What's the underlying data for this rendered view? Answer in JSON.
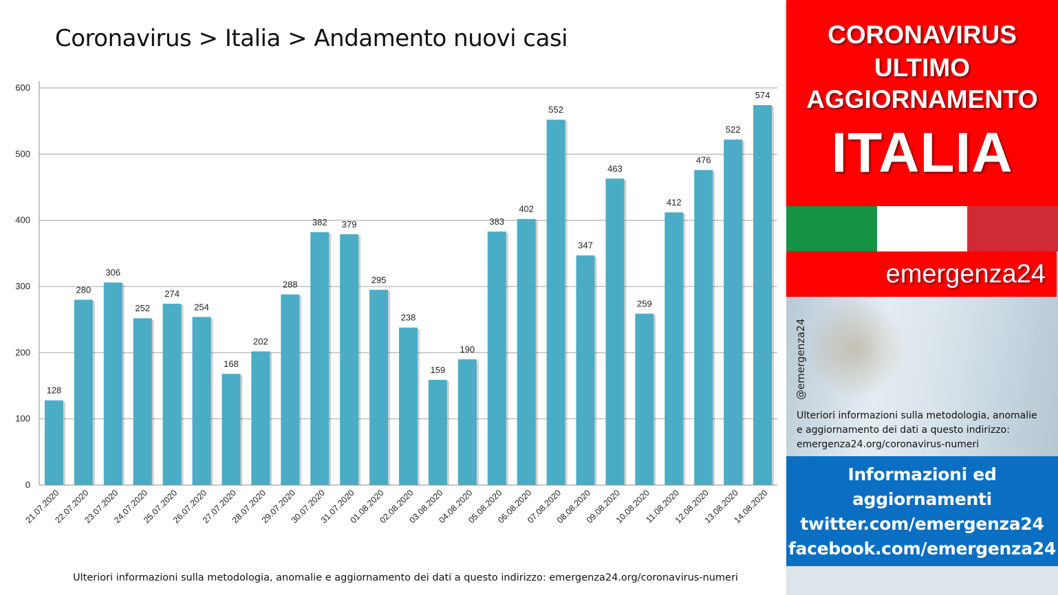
{
  "title": "Coronavirus > Italia > Andamento nuovi casi",
  "footer_note": "Ulteriori informazioni sulla metodologia, anomalie e aggiornamento dei dati a questo indirizzo: emergenza24.org/coronavirus-numeri",
  "colors": {
    "bar": "#4bacc6",
    "header_red": "#ff0000",
    "flag_green": "#139343",
    "flag_white": "#ffffff",
    "flag_red": "#cf2b37",
    "info_blue": "#0a6fc2"
  },
  "chart_data": {
    "type": "bar",
    "title": "Coronavirus > Italia > Andamento nuovi casi",
    "xlabel": "",
    "ylabel": "",
    "ylim": [
      0,
      600
    ],
    "yticks": [
      0,
      100,
      200,
      300,
      400,
      500,
      600
    ],
    "grid": true,
    "legend": "none",
    "categories": [
      "21.07.2020",
      "22.07.2020",
      "23.07.2020",
      "24.07.2020",
      "25.07.2020",
      "26.07.2020",
      "27.07.2020",
      "28.07.2020",
      "29.07.2020",
      "30.07.2020",
      "31.07.2020",
      "01.08.2020",
      "02.08.2020",
      "03.08.2020",
      "04.08.2020",
      "05.08.2020",
      "06.08.2020",
      "07.08.2020",
      "08.08.2020",
      "09.08.2020",
      "10.08.2020",
      "11.08.2020",
      "12.08.2020",
      "13.08.2020",
      "14.08.2020"
    ],
    "values": [
      128,
      280,
      306,
      252,
      274,
      254,
      168,
      202,
      288,
      382,
      379,
      295,
      238,
      159,
      190,
      383,
      402,
      552,
      347,
      463,
      259,
      412,
      476,
      522,
      574
    ]
  },
  "side_panel": {
    "header_lines": [
      "CORONAVIRUS",
      "ULTIMO",
      "AGGIORNAMENTO"
    ],
    "country": "ITALIA",
    "brand": "emergenza24",
    "handle": "@emergenza24",
    "note_lines": [
      "Ulteriori informazioni sulla metodologia, anomalie",
      "e aggiornamento dei dati a questo indirizzo:",
      "emergenza24.org/coronavirus-numeri"
    ],
    "info_lines": [
      "Informazioni ed",
      "aggiornamenti",
      "twitter.com/emergenza24",
      "facebook.com/emergenza24"
    ]
  }
}
